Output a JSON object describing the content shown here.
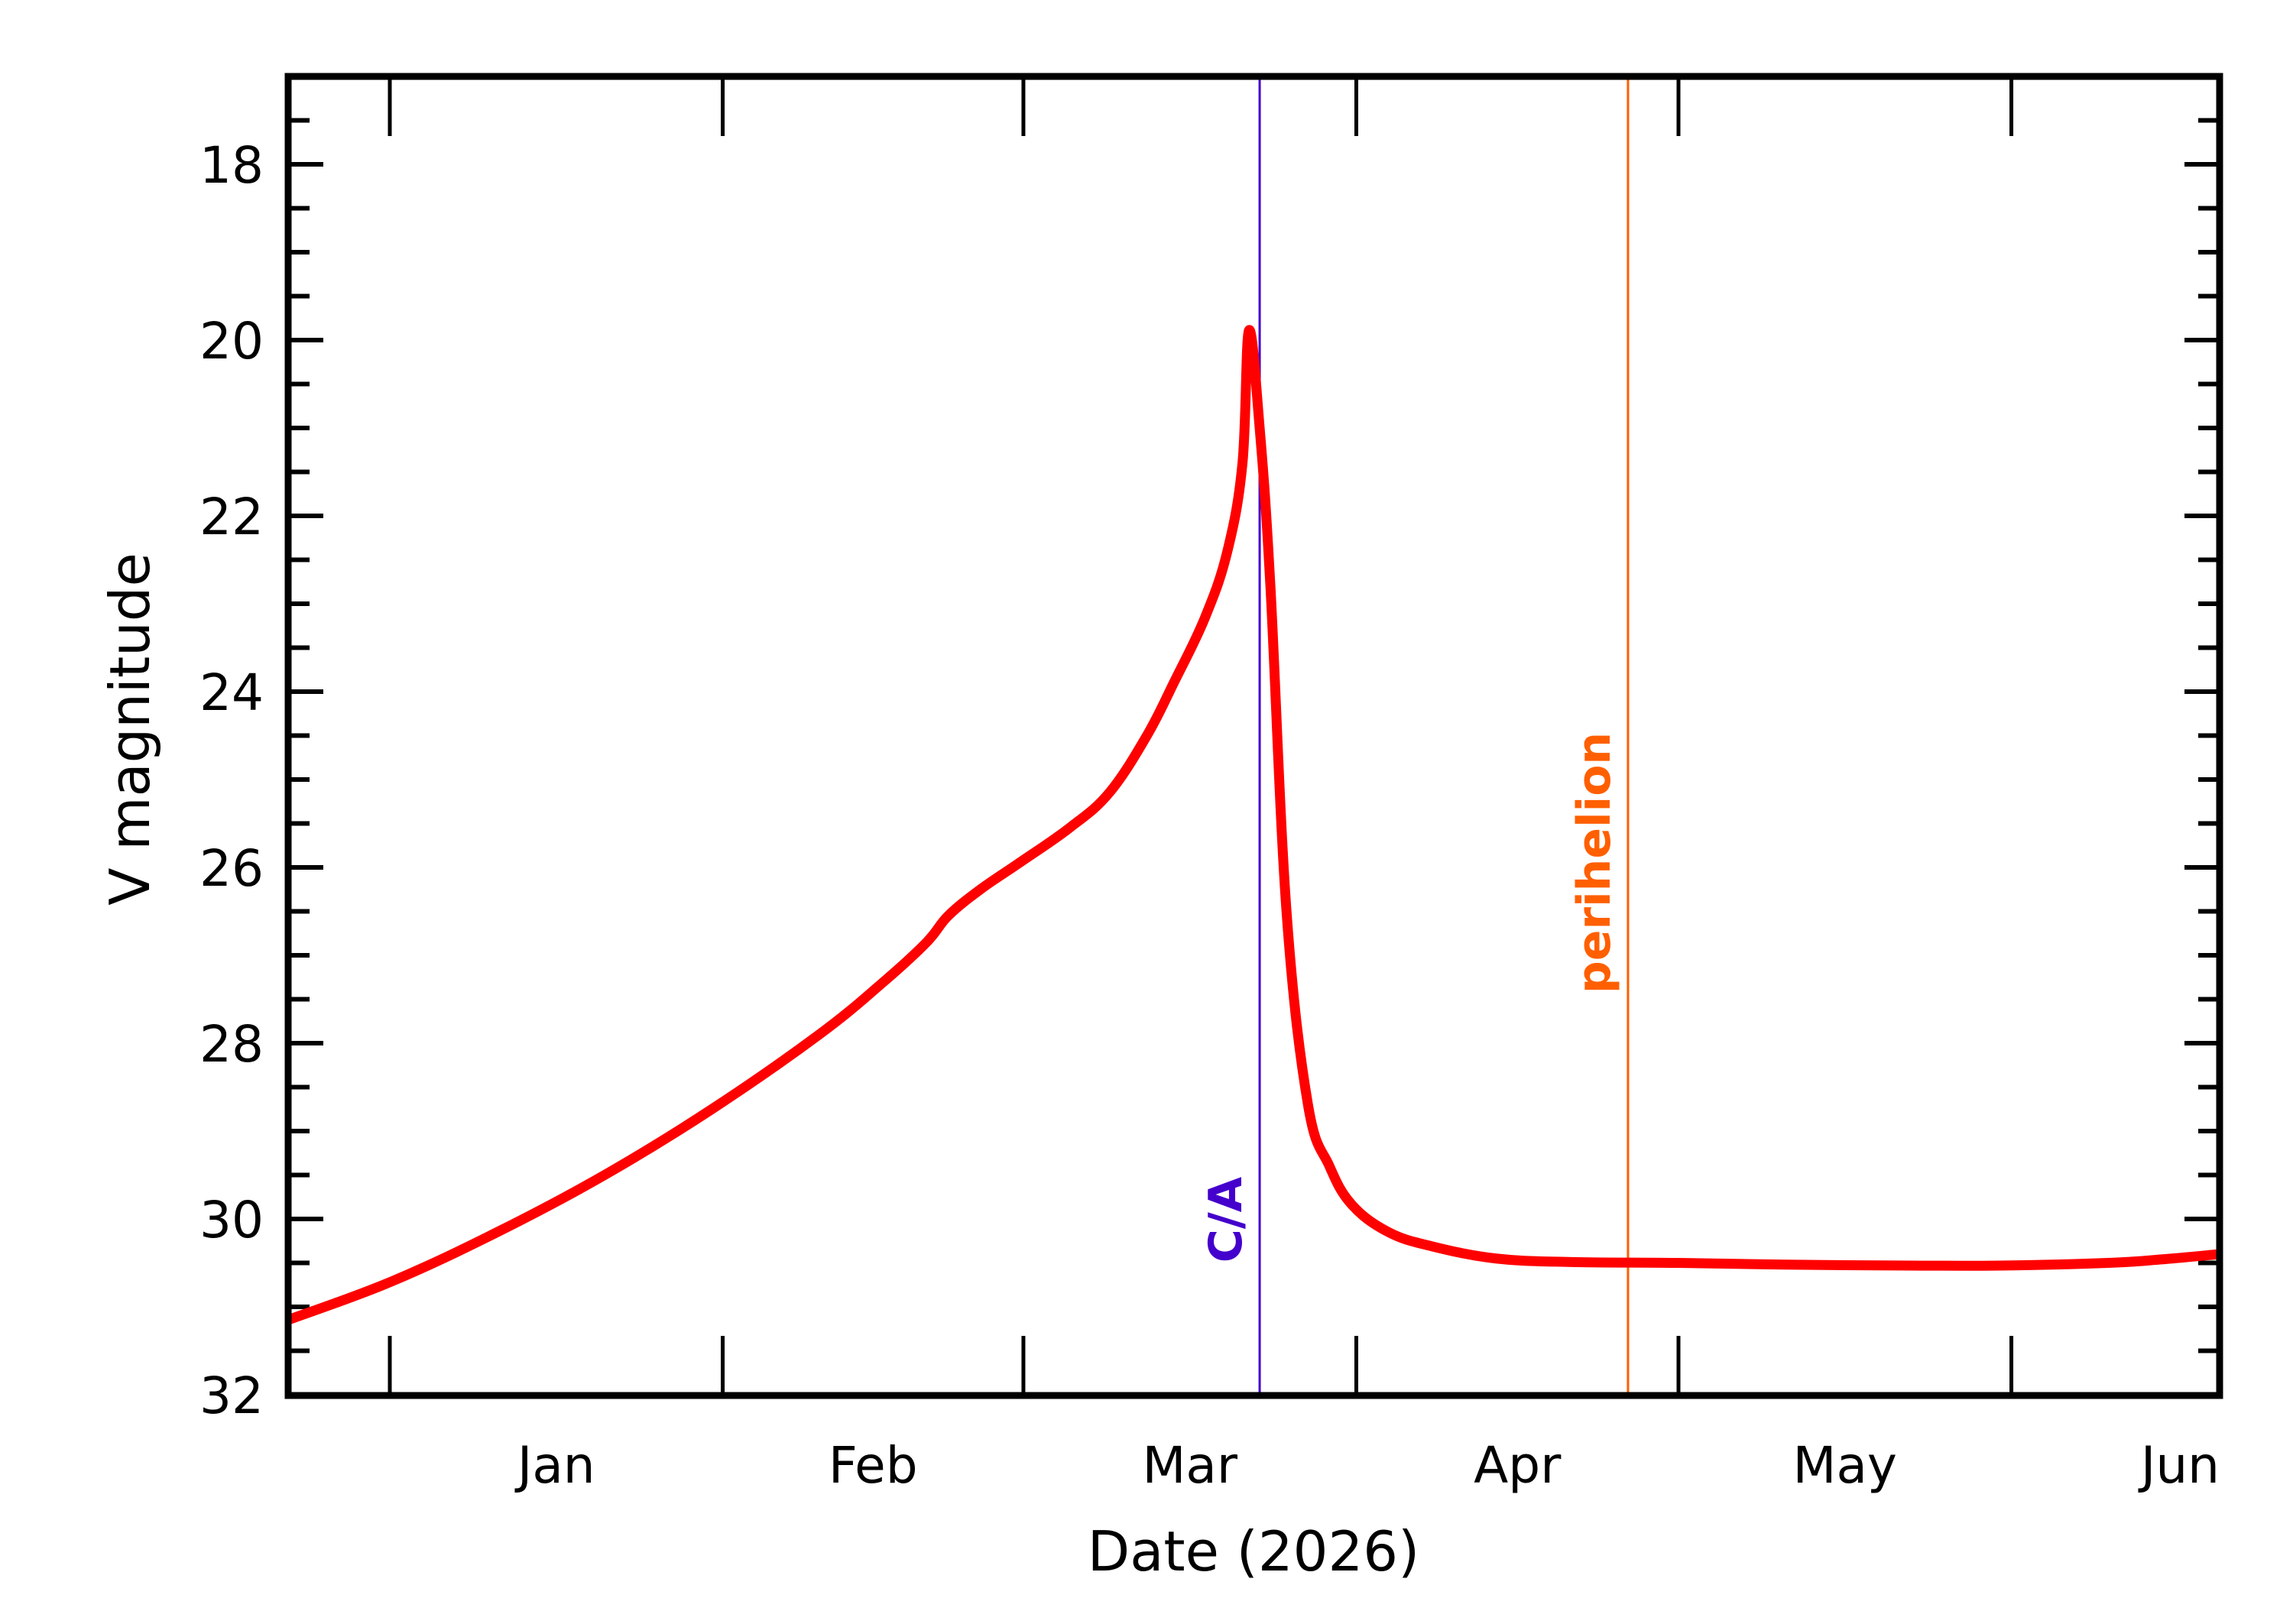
{
  "chart_data": {
    "type": "line",
    "title": "",
    "xlabel": "Date (2026)",
    "ylabel": "V magnitude",
    "x_unit": "days since 2026-01-01",
    "xlim": [
      -9.5,
      170.4
    ],
    "ylim": [
      32,
      17
    ],
    "y_inverted": true,
    "grid": false,
    "legend": null,
    "x_ticks": [
      {
        "day": 0,
        "label": ""
      },
      {
        "day": 31,
        "label": ""
      },
      {
        "day": 59,
        "label": ""
      },
      {
        "day": 90,
        "label": ""
      },
      {
        "day": 120,
        "label": ""
      },
      {
        "day": 151,
        "label": ""
      }
    ],
    "x_month_labels": [
      {
        "label": "Jan",
        "day": 15.5
      },
      {
        "label": "Feb",
        "day": 45
      },
      {
        "label": "Mar",
        "day": 74.5
      },
      {
        "label": "Apr",
        "day": 105
      },
      {
        "label": "May",
        "day": 135.5
      },
      {
        "label": "Jun",
        "day": 166
      }
    ],
    "y_ticks": [
      {
        "value": 18,
        "label": "18"
      },
      {
        "value": 20,
        "label": "20"
      },
      {
        "value": 22,
        "label": "22"
      },
      {
        "value": 24,
        "label": "24"
      },
      {
        "value": 26,
        "label": "26"
      },
      {
        "value": 28,
        "label": "28"
      },
      {
        "value": 30,
        "label": "30"
      },
      {
        "value": 32,
        "label": "32"
      }
    ],
    "y_minor_step": 0.5,
    "series": [
      {
        "name": "V magnitude",
        "color": "#ff0000",
        "points": [
          [
            -9.5,
            31.15
          ],
          [
            0,
            30.72
          ],
          [
            10,
            30.15
          ],
          [
            20,
            29.5
          ],
          [
            30,
            28.75
          ],
          [
            40,
            27.9
          ],
          [
            46,
            27.3
          ],
          [
            50,
            26.85
          ],
          [
            52,
            26.55
          ],
          [
            55,
            26.25
          ],
          [
            58.6,
            25.95
          ],
          [
            63.3,
            25.55
          ],
          [
            67,
            25.15
          ],
          [
            70.5,
            24.5
          ],
          [
            73,
            23.9
          ],
          [
            75.9,
            23.16
          ],
          [
            78,
            22.4
          ],
          [
            79.4,
            21.4
          ],
          [
            80,
            19.89
          ],
          [
            81,
            21.0
          ],
          [
            82,
            22.8
          ],
          [
            83.5,
            26.5
          ],
          [
            85.5,
            28.7
          ],
          [
            87.5,
            29.4
          ],
          [
            89.6,
            29.84
          ],
          [
            93,
            30.15
          ],
          [
            97,
            30.31
          ],
          [
            103,
            30.45
          ],
          [
            110,
            30.49
          ],
          [
            120,
            30.5
          ],
          [
            130,
            30.52
          ],
          [
            141.6,
            30.53
          ],
          [
            150,
            30.53
          ],
          [
            160,
            30.5
          ],
          [
            165,
            30.46
          ],
          [
            170.4,
            30.4
          ]
        ]
      }
    ],
    "annotations": [
      {
        "label": "C/A",
        "day": 81.0,
        "color": "#4400cc",
        "type": "vline"
      },
      {
        "label": "perihelion",
        "day": 115.3,
        "color": "#ff5f00",
        "type": "vline"
      }
    ]
  }
}
